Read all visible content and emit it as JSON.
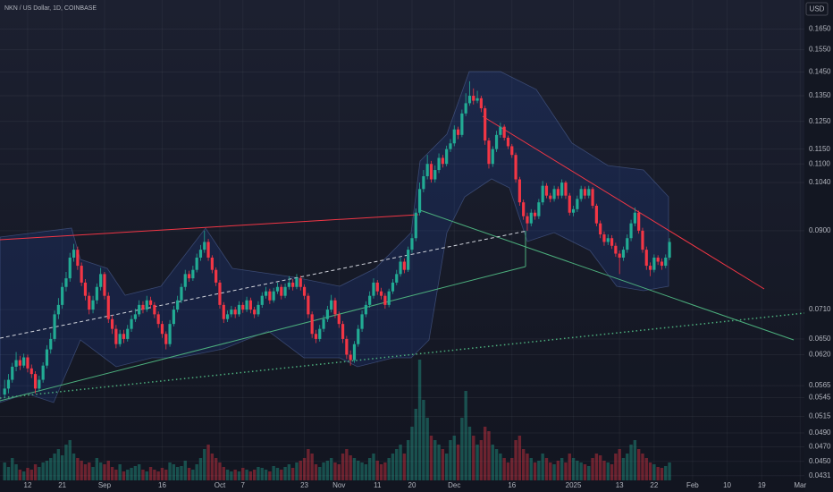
{
  "header": {
    "symbol": "NKN / US Dollar, 1D, COINBASE",
    "currency": "USD"
  },
  "chart_data": {
    "type": "candlestick",
    "open": 0.055,
    "close": [
      0.056,
      0.0575,
      0.0598,
      0.061,
      0.06,
      0.0615,
      0.0595,
      0.0585,
      0.056,
      0.0575,
      0.06,
      0.063,
      0.065,
      0.07,
      0.072,
      0.076,
      0.078,
      0.083,
      0.085,
      0.081,
      0.077,
      0.074,
      0.071,
      0.073,
      0.076,
      0.079,
      0.074,
      0.069,
      0.067,
      0.064,
      0.066,
      0.065,
      0.067,
      0.069,
      0.07,
      0.072,
      0.071,
      0.073,
      0.072,
      0.07,
      0.068,
      0.066,
      0.064,
      0.068,
      0.071,
      0.073,
      0.076,
      0.079,
      0.078,
      0.08,
      0.083,
      0.085,
      0.087,
      0.083,
      0.08,
      0.077,
      0.072,
      0.069,
      0.07,
      0.071,
      0.07,
      0.072,
      0.071,
      0.073,
      0.071,
      0.07,
      0.072,
      0.074,
      0.075,
      0.073,
      0.075,
      0.076,
      0.074,
      0.076,
      0.077,
      0.076,
      0.078,
      0.076,
      0.074,
      0.07,
      0.066,
      0.065,
      0.067,
      0.069,
      0.071,
      0.073,
      0.07,
      0.068,
      0.065,
      0.062,
      0.061,
      0.064,
      0.067,
      0.07,
      0.072,
      0.074,
      0.077,
      0.075,
      0.074,
      0.072,
      0.075,
      0.077,
      0.079,
      0.082,
      0.08,
      0.085,
      0.088,
      0.095,
      0.102,
      0.106,
      0.11,
      0.105,
      0.108,
      0.112,
      0.11,
      0.115,
      0.117,
      0.122,
      0.12,
      0.128,
      0.132,
      0.135,
      0.133,
      0.134,
      0.13,
      0.118,
      0.11,
      0.115,
      0.12,
      0.123,
      0.119,
      0.116,
      0.113,
      0.105,
      0.098,
      0.094,
      0.092,
      0.095,
      0.094,
      0.098,
      0.103,
      0.1,
      0.099,
      0.102,
      0.1,
      0.104,
      0.1,
      0.095,
      0.096,
      0.099,
      0.102,
      0.1,
      0.102,
      0.097,
      0.092,
      0.089,
      0.087,
      0.088,
      0.086,
      0.084,
      0.083,
      0.085,
      0.088,
      0.092,
      0.095,
      0.09,
      0.085,
      0.081,
      0.08,
      0.083,
      0.082,
      0.081,
      0.083,
      0.087
    ],
    "high": [
      0.0575,
      0.0585,
      0.0605,
      0.0625,
      0.0618,
      0.0622,
      0.062,
      0.0602,
      0.059,
      0.0582,
      0.0606,
      0.0638,
      0.0662,
      0.0708,
      0.0735,
      0.077,
      0.0795,
      0.0842,
      0.0865,
      0.0858,
      0.0818,
      0.0778,
      0.0748,
      0.074,
      0.0768,
      0.0805,
      0.0795,
      0.0748,
      0.0698,
      0.0678,
      0.0668,
      0.0668,
      0.0678,
      0.0698,
      0.0712,
      0.073,
      0.0728,
      0.074,
      0.0738,
      0.0726,
      0.0706,
      0.0686,
      0.0665,
      0.0688,
      0.0718,
      0.074,
      0.0768,
      0.08,
      0.0798,
      0.081,
      0.084,
      0.0862,
      0.09,
      0.0878,
      0.0836,
      0.0806,
      0.0776,
      0.0726,
      0.0708,
      0.0718,
      0.0716,
      0.0728,
      0.0726,
      0.0738,
      0.0736,
      0.0716,
      0.0728,
      0.0748,
      0.076,
      0.0756,
      0.0758,
      0.077,
      0.0766,
      0.0768,
      0.0785,
      0.0778,
      0.079,
      0.0786,
      0.0766,
      0.0746,
      0.0706,
      0.0668,
      0.0678,
      0.0698,
      0.0718,
      0.0742,
      0.0736,
      0.0706,
      0.0686,
      0.0656,
      0.0628,
      0.0646,
      0.0678,
      0.0708,
      0.0728,
      0.075,
      0.078,
      0.0776,
      0.0758,
      0.0746,
      0.0756,
      0.0778,
      0.08,
      0.083,
      0.0828,
      0.0858,
      0.0892,
      0.0962,
      0.104,
      0.108,
      0.113,
      0.111,
      0.1095,
      0.1135,
      0.113,
      0.1162,
      0.1185,
      0.1235,
      0.123,
      0.1295,
      0.136,
      0.141,
      0.138,
      0.137,
      0.135,
      0.131,
      0.119,
      0.116,
      0.1215,
      0.1245,
      0.1238,
      0.1198,
      0.1168,
      0.1138,
      0.1058,
      0.0988,
      0.095,
      0.096,
      0.0958,
      0.099,
      0.1045,
      0.1038,
      0.1008,
      0.103,
      0.1028,
      0.105,
      0.1046,
      0.1008,
      0.097,
      0.1,
      0.103,
      0.1028,
      0.103,
      0.1026,
      0.0976,
      0.0928,
      0.0898,
      0.089,
      0.0888,
      0.0868,
      0.0848,
      0.0858,
      0.089,
      0.093,
      0.0965,
      0.0956,
      0.0908,
      0.0858,
      0.0818,
      0.0838,
      0.0836,
      0.0828,
      0.0838,
      0.088
    ],
    "low": [
      0.0545,
      0.0552,
      0.057,
      0.059,
      0.0592,
      0.0596,
      0.0588,
      0.0578,
      0.0552,
      0.0555,
      0.057,
      0.0595,
      0.0622,
      0.0645,
      0.069,
      0.0712,
      0.075,
      0.0772,
      0.082,
      0.08,
      0.0762,
      0.073,
      0.07,
      0.0702,
      0.0722,
      0.0752,
      0.0732,
      0.0682,
      0.066,
      0.0632,
      0.0635,
      0.0642,
      0.0645,
      0.0664,
      0.0684,
      0.0695,
      0.0702,
      0.0705,
      0.0712,
      0.0692,
      0.0672,
      0.0652,
      0.063,
      0.0635,
      0.0675,
      0.0704,
      0.0724,
      0.0752,
      0.0772,
      0.0774,
      0.0794,
      0.0822,
      0.0842,
      0.0822,
      0.0792,
      0.0762,
      0.0712,
      0.0682,
      0.0684,
      0.0694,
      0.0692,
      0.0695,
      0.0703,
      0.0705,
      0.0702,
      0.0692,
      0.0695,
      0.0714,
      0.0734,
      0.0722,
      0.0725,
      0.0744,
      0.0732,
      0.0735,
      0.0754,
      0.0752,
      0.0755,
      0.0752,
      0.0732,
      0.0692,
      0.0652,
      0.0642,
      0.0645,
      0.0664,
      0.0684,
      0.0704,
      0.0692,
      0.0672,
      0.0642,
      0.0612,
      0.06,
      0.0605,
      0.0635,
      0.0664,
      0.0694,
      0.0714,
      0.0734,
      0.0742,
      0.0732,
      0.0712,
      0.0715,
      0.0744,
      0.0764,
      0.0784,
      0.0792,
      0.0795,
      0.0842,
      0.0872,
      0.0942,
      0.101,
      0.105,
      0.104,
      0.104,
      0.107,
      0.1088,
      0.1092,
      0.114,
      0.116,
      0.1185,
      0.1192,
      0.127,
      0.131,
      0.1315,
      0.132,
      0.1285,
      0.1165,
      0.1085,
      0.109,
      0.114,
      0.119,
      0.118,
      0.115,
      0.112,
      0.104,
      0.097,
      0.093,
      0.09,
      0.0912,
      0.093,
      0.0932,
      0.0972,
      0.0992,
      0.098,
      0.0982,
      0.099,
      0.0992,
      0.099,
      0.0942,
      0.094,
      0.0952,
      0.0982,
      0.099,
      0.0992,
      0.0962,
      0.0912,
      0.088,
      0.086,
      0.0862,
      0.0852,
      0.0832,
      0.079,
      0.0822,
      0.0842,
      0.0872,
      0.0912,
      0.0892,
      0.0842,
      0.08,
      0.0785,
      0.0794,
      0.0812,
      0.08,
      0.0804,
      0.0824
    ],
    "volume": [
      20,
      15,
      25,
      18,
      12,
      10,
      14,
      12,
      18,
      15,
      20,
      22,
      25,
      30,
      35,
      28,
      40,
      45,
      30,
      25,
      22,
      18,
      20,
      15,
      25,
      20,
      18,
      22,
      15,
      12,
      18,
      10,
      12,
      14,
      16,
      18,
      12,
      10,
      15,
      12,
      10,
      14,
      12,
      20,
      18,
      15,
      16,
      22,
      14,
      12,
      18,
      25,
      35,
      40,
      30,
      25,
      20,
      15,
      12,
      10,
      12,
      10,
      14,
      12,
      10,
      12,
      15,
      14,
      12,
      10,
      16,
      14,
      12,
      15,
      18,
      14,
      20,
      22,
      25,
      35,
      30,
      18,
      15,
      20,
      22,
      25,
      20,
      18,
      30,
      35,
      28,
      25,
      22,
      20,
      18,
      25,
      30,
      22,
      18,
      20,
      25,
      30,
      35,
      40,
      30,
      45,
      60,
      80,
      135,
      90,
      70,
      50,
      45,
      40,
      35,
      30,
      45,
      50,
      40,
      70,
      100,
      60,
      50,
      40,
      45,
      60,
      55,
      40,
      35,
      30,
      25,
      20,
      25,
      45,
      50,
      35,
      30,
      25,
      20,
      22,
      30,
      25,
      20,
      18,
      22,
      25,
      20,
      30,
      25,
      22,
      20,
      18,
      16,
      25,
      30,
      28,
      22,
      20,
      18,
      30,
      35,
      25,
      30,
      40,
      45,
      35,
      30,
      25,
      20,
      18,
      15,
      14,
      16,
      20
    ],
    "colors": {
      "up": "#22ab94",
      "down": "#f23645"
    },
    "log_scale": true,
    "grid": true,
    "ylim": [
      0.0425,
      0.18
    ],
    "yticks": [
      {
        "value": 0.165,
        "label": "0.1650"
      },
      {
        "value": 0.155,
        "label": "0.1550"
      },
      {
        "value": 0.145,
        "label": "0.1450"
      },
      {
        "value": 0.135,
        "label": "0.1350"
      },
      {
        "value": 0.125,
        "label": "0.1250"
      },
      {
        "value": 0.115,
        "label": "0.1150"
      },
      {
        "value": 0.11,
        "label": "0.1100"
      },
      {
        "value": 0.104,
        "label": "0.1040"
      },
      {
        "value": 0.09,
        "label": "0.0900"
      },
      {
        "value": 0.071,
        "label": "0.0710"
      },
      {
        "value": 0.065,
        "label": "0.0650"
      },
      {
        "value": 0.062,
        "label": "0.0620"
      },
      0.0565,
      0.0545,
      0.0515,
      {
        "value": 0.049,
        "label": "0.0490"
      },
      {
        "value": 0.047,
        "label": "0.0470"
      },
      {
        "value": 0.045,
        "label": "0.0450"
      },
      0.0431
    ],
    "xlim": [
      -1.2,
      208.1
    ],
    "xticks": [
      {
        "value": 6,
        "label": "12"
      },
      {
        "value": 15,
        "label": "21"
      },
      {
        "value": 26,
        "label": "Sep"
      },
      {
        "value": 41,
        "label": "16"
      },
      {
        "value": 56,
        "label": "Oct"
      },
      {
        "value": 62,
        "label": "7"
      },
      {
        "value": 78,
        "label": "23"
      },
      {
        "value": 87,
        "label": "Nov"
      },
      {
        "value": 97,
        "label": "11"
      },
      {
        "value": 106,
        "label": "20"
      },
      {
        "value": 117,
        "label": "Dec"
      },
      {
        "value": 132,
        "label": "16"
      },
      {
        "value": 148,
        "label": "2025"
      },
      {
        "value": 160,
        "label": "13"
      },
      {
        "value": 169,
        "label": "22"
      },
      {
        "value": 179,
        "label": "Feb"
      },
      {
        "value": 188,
        "label": "10"
      },
      {
        "value": 197,
        "label": "19"
      },
      {
        "value": 207,
        "label": "Mar"
      }
    ]
  }
}
